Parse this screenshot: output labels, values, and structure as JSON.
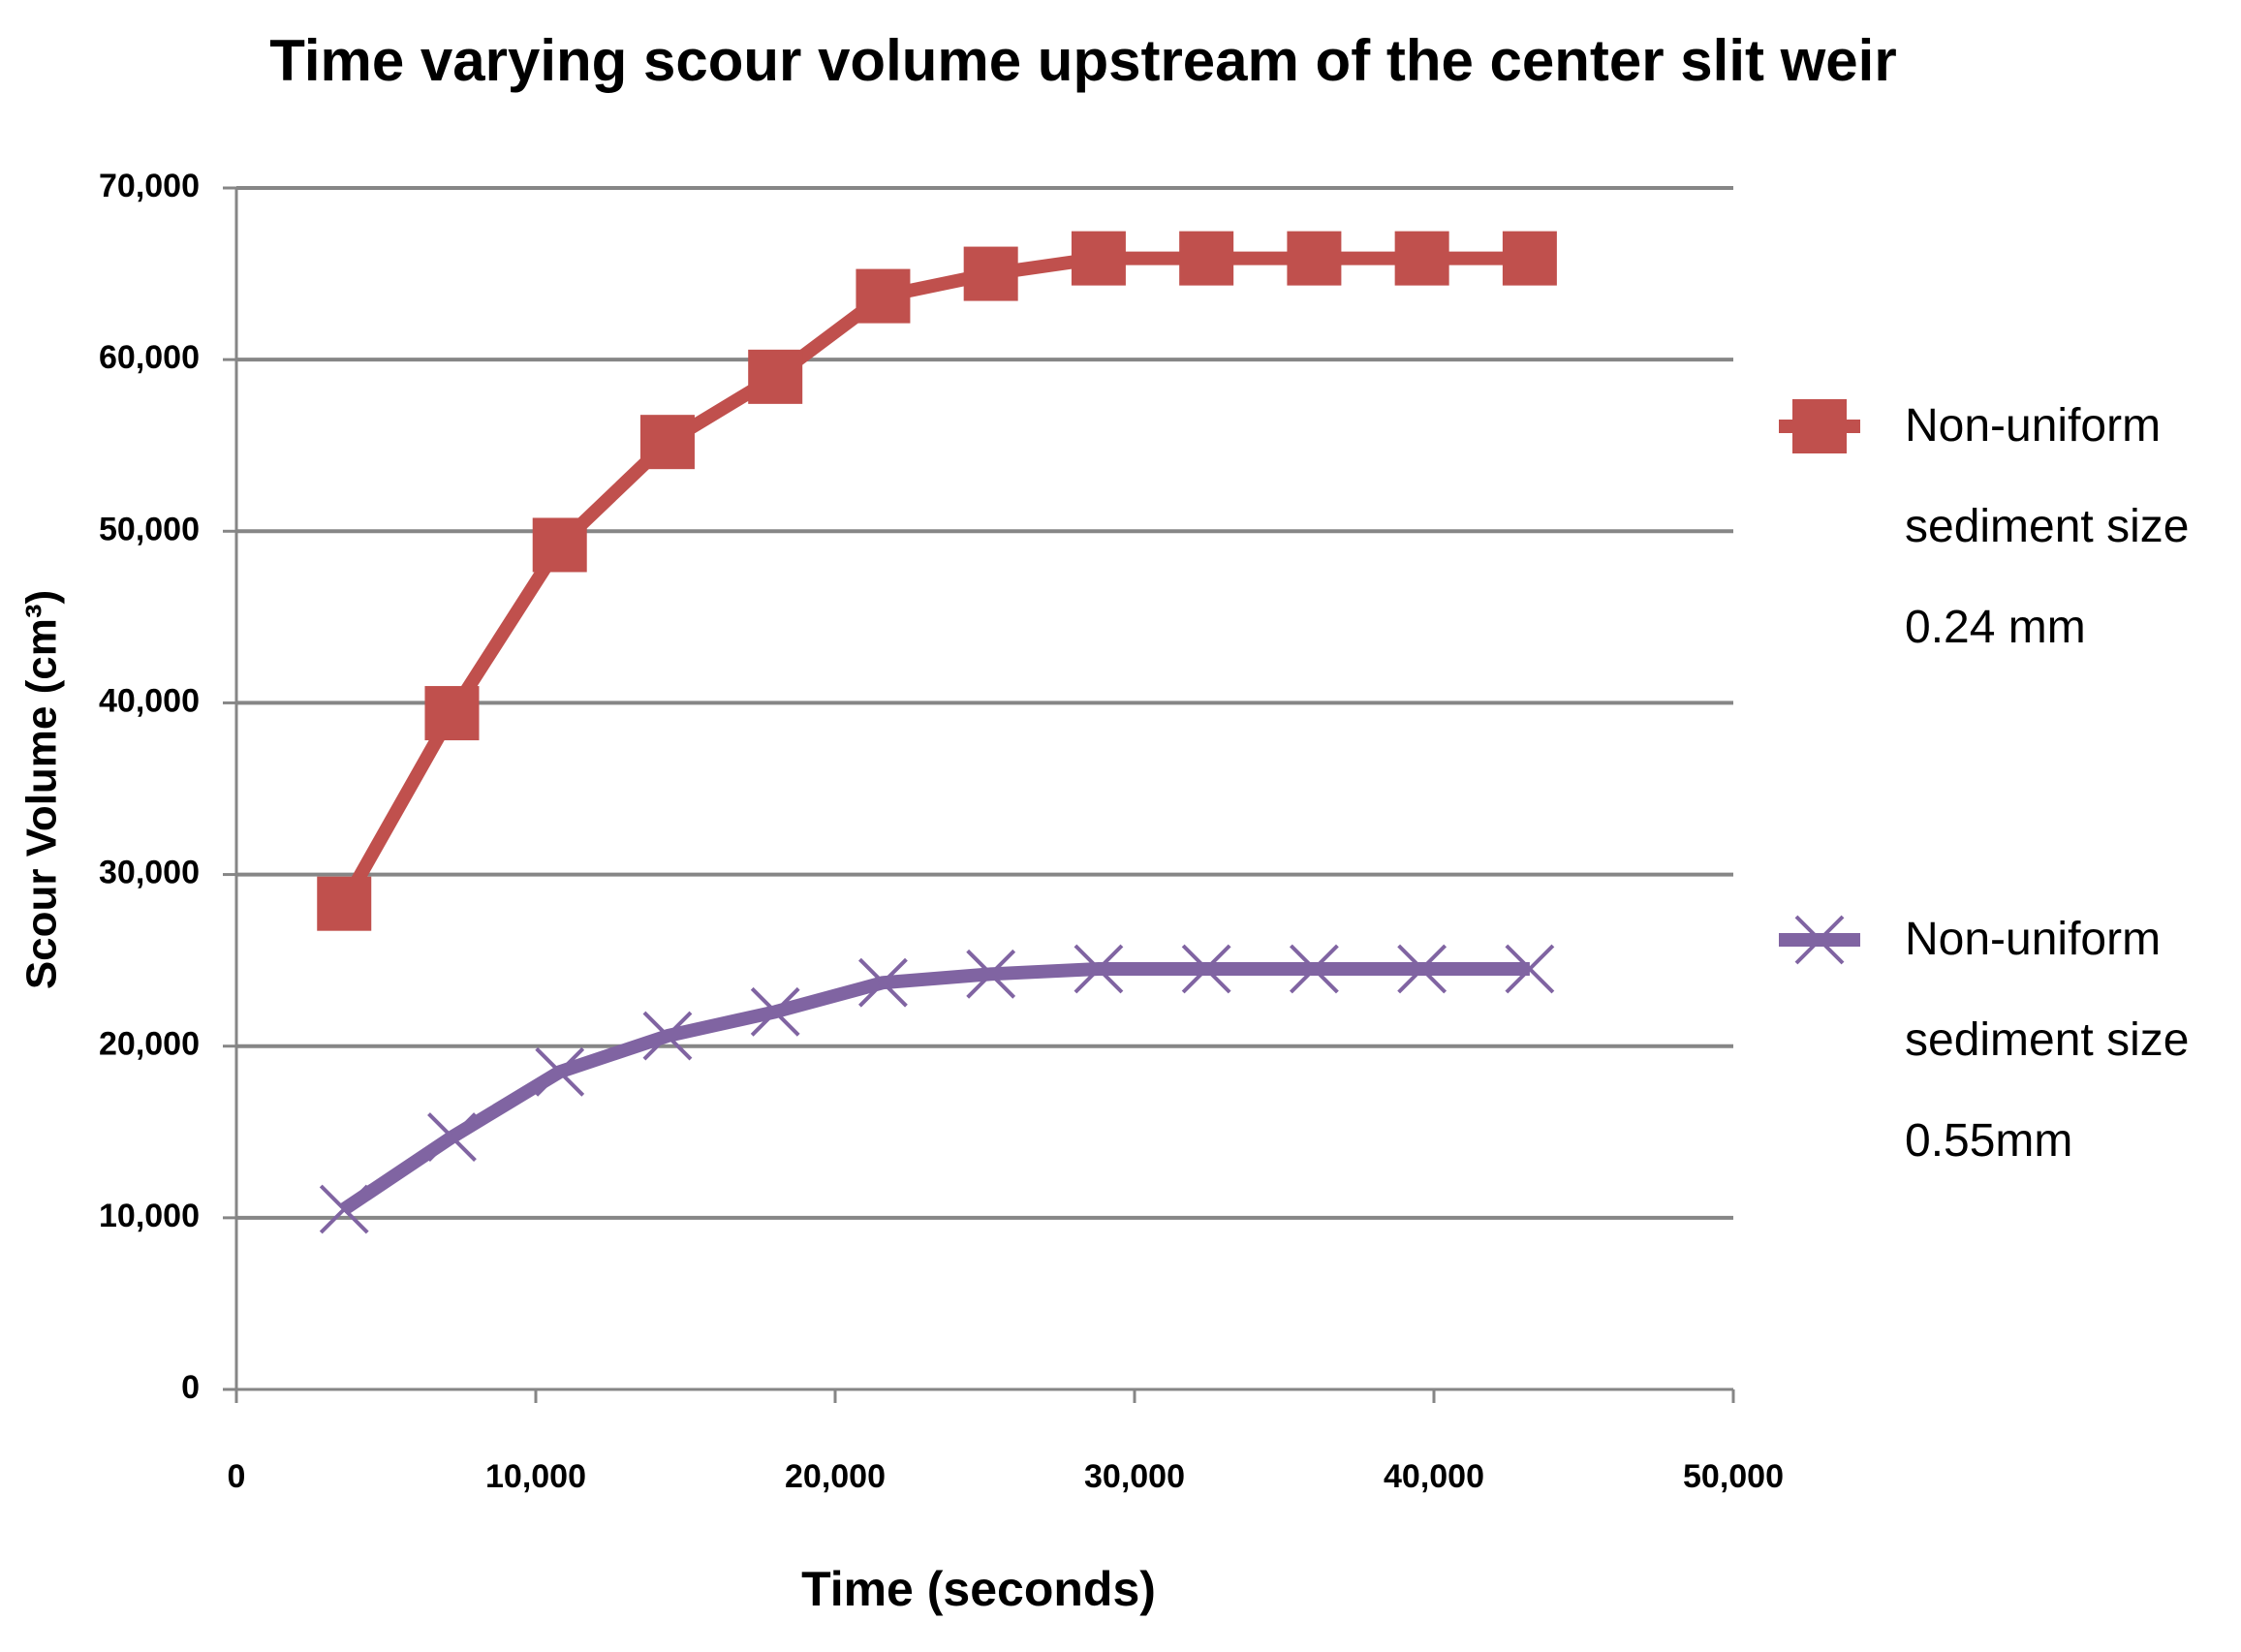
{
  "chart_data": {
    "type": "line",
    "title": "Time varying scour volume upstream of the center slit weir",
    "x_label": "Time (seconds)",
    "y_label": "Scour Volume (cm³)",
    "x": [
      3600,
      7200,
      10800,
      14400,
      18000,
      21600,
      25200,
      28800,
      32400,
      36000,
      39600,
      43200
    ],
    "series": [
      {
        "name": "Non-uniform sediment size 0.24 mm",
        "color": "#c0504d",
        "marker": "square",
        "values": [
          28300,
          39400,
          49200,
          55200,
          59000,
          63700,
          65000,
          65900,
          65900,
          65900,
          65900,
          65900
        ]
      },
      {
        "name": "Non-uniform sediment size 0.55mm",
        "color": "#8064a2",
        "marker": "x",
        "values": [
          10500,
          14700,
          18500,
          20600,
          22000,
          23700,
          24200,
          24500,
          24500,
          24500,
          24500,
          24500
        ]
      }
    ],
    "xlim": [
      0,
      50000
    ],
    "xticks": [
      0,
      {
        "value": 10000,
        "label": "10,000"
      },
      {
        "value": 20000,
        "label": "20,000"
      },
      {
        "value": 30000,
        "label": "30,000"
      },
      {
        "value": 40000,
        "label": "40,000"
      },
      {
        "value": 50000,
        "label": "50,000"
      }
    ],
    "ylim": [
      0,
      70000
    ],
    "yticks": [
      0,
      {
        "value": 10000,
        "label": "10,000"
      },
      {
        "value": 20000,
        "label": "20,000"
      },
      {
        "value": 30000,
        "label": "30,000"
      },
      {
        "value": 40000,
        "label": "40,000"
      },
      {
        "value": 50000,
        "label": "50,000"
      },
      {
        "value": 60000,
        "label": "60,000"
      },
      {
        "value": 70000,
        "label": "70,000"
      }
    ],
    "grid": true,
    "legend": "right"
  }
}
